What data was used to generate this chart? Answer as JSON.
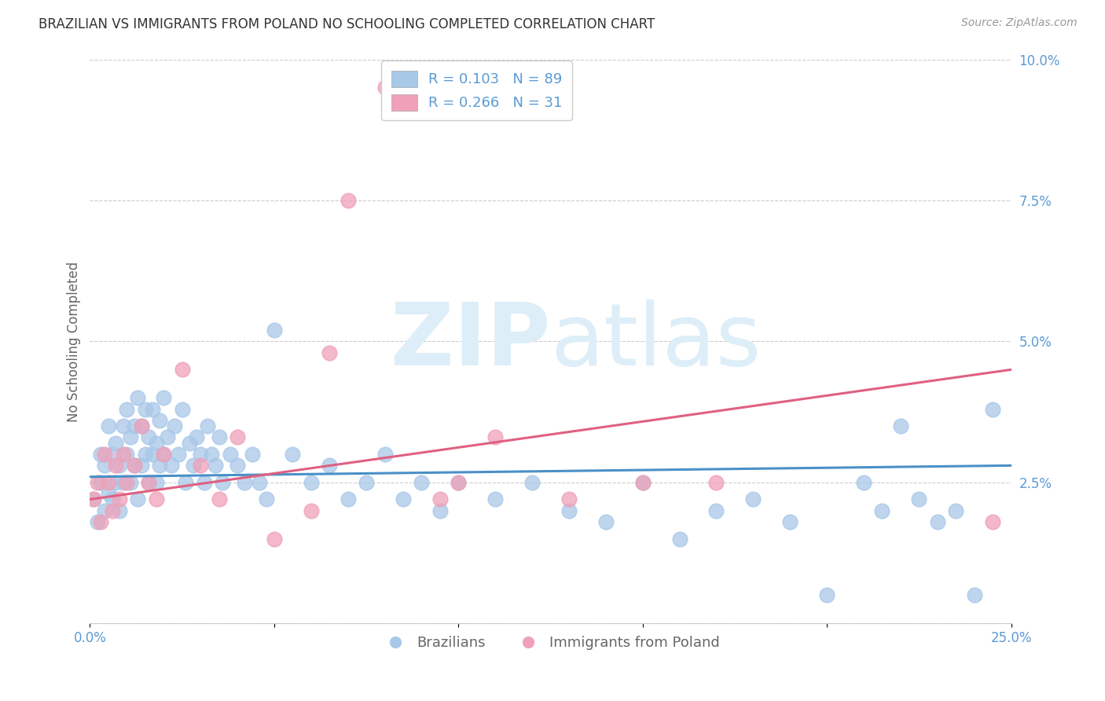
{
  "title": "BRAZILIAN VS IMMIGRANTS FROM POLAND NO SCHOOLING COMPLETED CORRELATION CHART",
  "source": "Source: ZipAtlas.com",
  "ylabel": "No Schooling Completed",
  "xlim": [
    0.0,
    0.25
  ],
  "ylim": [
    0.0,
    0.1
  ],
  "xticks": [
    0.0,
    0.05,
    0.1,
    0.15,
    0.2,
    0.25
  ],
  "yticks": [
    0.0,
    0.025,
    0.05,
    0.075,
    0.1
  ],
  "ytick_labels": [
    "",
    "2.5%",
    "5.0%",
    "7.5%",
    "10.0%"
  ],
  "xtick_labels": [
    "0.0%",
    "",
    "",
    "",
    "",
    "25.0%"
  ],
  "blue_color": "#a8c8e8",
  "pink_color": "#f0a0b8",
  "blue_line_color": "#4a90c8",
  "pink_line_color": "#e06080",
  "axis_color": "#5b9bd5",
  "grid_color": "#cccccc",
  "watermark_color": "#ddeef8",
  "R_blue": 0.103,
  "N_blue": 89,
  "R_pink": 0.266,
  "N_pink": 31,
  "blue_scatter_x": [
    0.001,
    0.002,
    0.003,
    0.003,
    0.004,
    0.004,
    0.005,
    0.005,
    0.006,
    0.006,
    0.007,
    0.007,
    0.008,
    0.008,
    0.009,
    0.009,
    0.01,
    0.01,
    0.011,
    0.011,
    0.012,
    0.012,
    0.013,
    0.013,
    0.014,
    0.014,
    0.015,
    0.015,
    0.016,
    0.016,
    0.017,
    0.017,
    0.018,
    0.018,
    0.019,
    0.019,
    0.02,
    0.02,
    0.021,
    0.022,
    0.023,
    0.024,
    0.025,
    0.026,
    0.027,
    0.028,
    0.029,
    0.03,
    0.031,
    0.032,
    0.033,
    0.034,
    0.035,
    0.036,
    0.038,
    0.04,
    0.042,
    0.044,
    0.046,
    0.048,
    0.05,
    0.055,
    0.06,
    0.065,
    0.07,
    0.075,
    0.08,
    0.085,
    0.09,
    0.095,
    0.1,
    0.11,
    0.12,
    0.13,
    0.14,
    0.15,
    0.16,
    0.17,
    0.18,
    0.19,
    0.2,
    0.21,
    0.215,
    0.22,
    0.225,
    0.23,
    0.235,
    0.24,
    0.245
  ],
  "blue_scatter_y": [
    0.022,
    0.018,
    0.025,
    0.03,
    0.02,
    0.028,
    0.023,
    0.035,
    0.022,
    0.03,
    0.025,
    0.032,
    0.02,
    0.028,
    0.035,
    0.025,
    0.03,
    0.038,
    0.025,
    0.033,
    0.028,
    0.035,
    0.022,
    0.04,
    0.028,
    0.035,
    0.03,
    0.038,
    0.025,
    0.033,
    0.03,
    0.038,
    0.025,
    0.032,
    0.028,
    0.036,
    0.03,
    0.04,
    0.033,
    0.028,
    0.035,
    0.03,
    0.038,
    0.025,
    0.032,
    0.028,
    0.033,
    0.03,
    0.025,
    0.035,
    0.03,
    0.028,
    0.033,
    0.025,
    0.03,
    0.028,
    0.025,
    0.03,
    0.025,
    0.022,
    0.052,
    0.03,
    0.025,
    0.028,
    0.022,
    0.025,
    0.03,
    0.022,
    0.025,
    0.02,
    0.025,
    0.022,
    0.025,
    0.02,
    0.018,
    0.025,
    0.015,
    0.02,
    0.022,
    0.018,
    0.005,
    0.025,
    0.02,
    0.035,
    0.022,
    0.018,
    0.02,
    0.005,
    0.038
  ],
  "pink_scatter_x": [
    0.001,
    0.002,
    0.003,
    0.004,
    0.005,
    0.006,
    0.007,
    0.008,
    0.009,
    0.01,
    0.012,
    0.014,
    0.016,
    0.018,
    0.02,
    0.025,
    0.03,
    0.035,
    0.04,
    0.05,
    0.06,
    0.065,
    0.07,
    0.08,
    0.095,
    0.1,
    0.11,
    0.13,
    0.15,
    0.17,
    0.245
  ],
  "pink_scatter_y": [
    0.022,
    0.025,
    0.018,
    0.03,
    0.025,
    0.02,
    0.028,
    0.022,
    0.03,
    0.025,
    0.028,
    0.035,
    0.025,
    0.022,
    0.03,
    0.045,
    0.028,
    0.022,
    0.033,
    0.015,
    0.02,
    0.048,
    0.075,
    0.095,
    0.022,
    0.025,
    0.033,
    0.022,
    0.025,
    0.025,
    0.018
  ],
  "blue_trendline_x": [
    0.0,
    0.25
  ],
  "blue_trendline_y": [
    0.026,
    0.028
  ],
  "pink_trendline_x": [
    0.0,
    0.25
  ],
  "pink_trendline_y": [
    0.022,
    0.045
  ]
}
